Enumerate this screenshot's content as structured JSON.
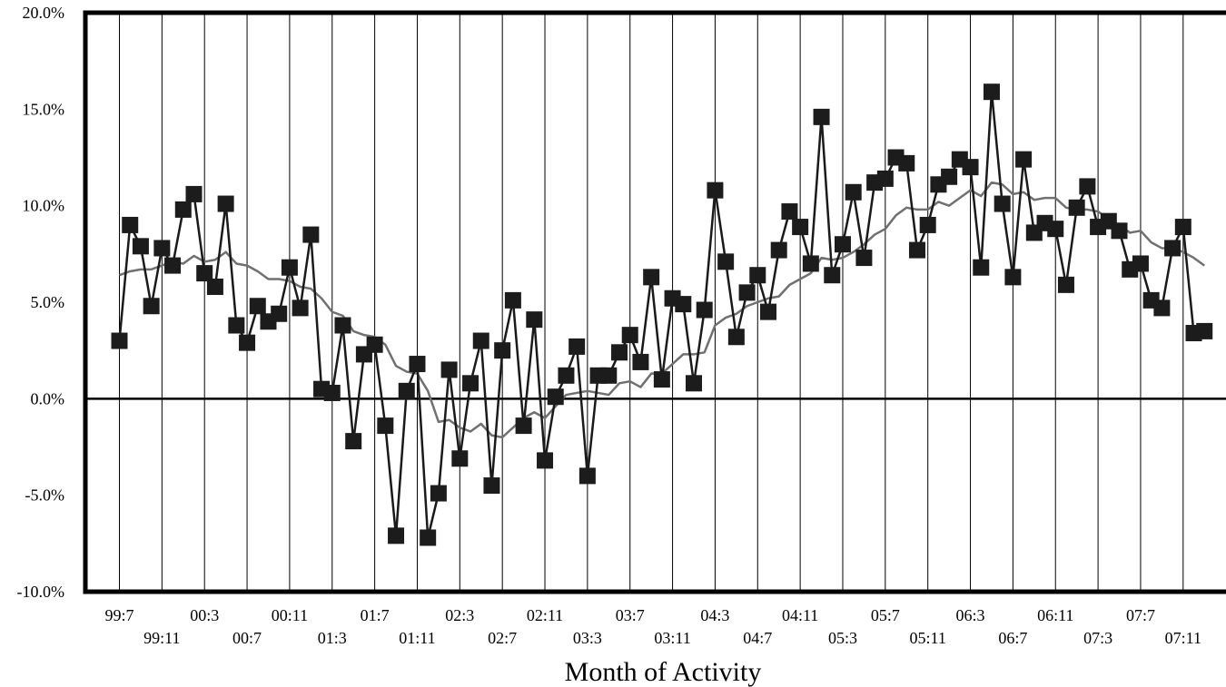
{
  "chart_data": {
    "type": "line",
    "title": "",
    "xlabel": "Month of Activity",
    "ylabel": "",
    "ylim": [
      -10,
      20
    ],
    "y_ticks": [
      "20.0%",
      "15.0%",
      "10.0%",
      "5.0%",
      "0.0%",
      "-5.0%",
      "-10.0%"
    ],
    "x_ticks_upper": [
      "99:7",
      "00:3",
      "00:11",
      "01:7",
      "02:3",
      "02:11",
      "03:7",
      "04:3",
      "04:11",
      "05:7",
      "06:3",
      "06:11",
      "07:7"
    ],
    "x_ticks_lower": [
      "99:11",
      "00:7",
      "01:3",
      "01:11",
      "02:7",
      "03:3",
      "03:11",
      "04:7",
      "05:3",
      "05:11",
      "06:7",
      "07:3",
      "07:11"
    ],
    "x_start": "1999-07",
    "grid": "vertical lines every 4 months",
    "legend": "none",
    "colors": {
      "monthly": "#1a1a1a",
      "trend": "#707070",
      "marker": "#1c1c1c"
    },
    "series": [
      {
        "marker": "square",
        "values": [
          3.0,
          9.0,
          7.9,
          4.8,
          7.8,
          6.9,
          9.8,
          10.6,
          6.5,
          5.8,
          10.1,
          3.8,
          2.9,
          4.8,
          4.0,
          4.4,
          6.8,
          4.7,
          8.5,
          0.5,
          0.3,
          3.8,
          -2.2,
          2.3,
          2.8,
          -1.4,
          -7.1,
          0.4,
          1.8,
          -7.2,
          -4.9,
          1.5,
          -3.1,
          0.8,
          3.0,
          -4.5,
          2.5,
          5.1,
          -1.4,
          4.1,
          -3.2,
          0.1,
          1.2,
          2.7,
          -4.0,
          1.2,
          1.2,
          2.4,
          3.3,
          1.9,
          6.3,
          1.0,
          5.2,
          4.9,
          0.8,
          4.6,
          10.8,
          7.1,
          3.2,
          5.5,
          6.4,
          4.5,
          7.7,
          9.7,
          8.9,
          7.0,
          14.6,
          6.4,
          8.0,
          10.7,
          7.3,
          11.2,
          11.4,
          12.5,
          12.2,
          7.7,
          9.0,
          11.1,
          11.5,
          12.4,
          12.0,
          6.8,
          15.9,
          10.1,
          6.3,
          12.4,
          8.6,
          9.1,
          8.8,
          5.9,
          9.9,
          11.0,
          8.9,
          9.2,
          8.7,
          6.7,
          7.0,
          5.1,
          4.7,
          7.8,
          8.9,
          3.4,
          3.5
        ]
      },
      {
        "values": [
          6.4,
          6.6,
          6.7,
          6.7,
          6.9,
          7.1,
          7.0,
          7.4,
          7.1,
          7.2,
          7.6,
          7.0,
          6.9,
          6.6,
          6.2,
          6.2,
          6.1,
          5.8,
          5.7,
          5.2,
          4.5,
          4.3,
          3.5,
          3.3,
          3.2,
          2.8,
          1.7,
          1.4,
          1.3,
          0.4,
          -1.2,
          -1.1,
          -1.5,
          -1.7,
          -1.3,
          -1.9,
          -2.0,
          -1.5,
          -1.0,
          -0.7,
          -1.0,
          -0.4,
          0.2,
          0.3,
          0.4,
          0.3,
          0.2,
          0.8,
          0.9,
          0.6,
          1.3,
          1.3,
          1.8,
          2.3,
          2.3,
          2.4,
          3.8,
          4.2,
          4.4,
          4.8,
          5.0,
          5.2,
          5.3,
          5.9,
          6.2,
          6.5,
          7.3,
          7.2,
          7.3,
          7.6,
          8.0,
          8.5,
          8.8,
          9.5,
          9.9,
          9.8,
          9.8,
          10.2,
          10.0,
          10.4,
          10.8,
          10.5,
          11.2,
          11.1,
          10.6,
          10.7,
          10.3,
          10.4,
          10.4,
          9.9,
          9.8,
          9.8,
          9.7,
          9.3,
          9.0,
          8.6,
          8.7,
          8.1,
          7.8,
          7.8,
          7.6,
          7.3,
          6.9
        ]
      }
    ]
  }
}
